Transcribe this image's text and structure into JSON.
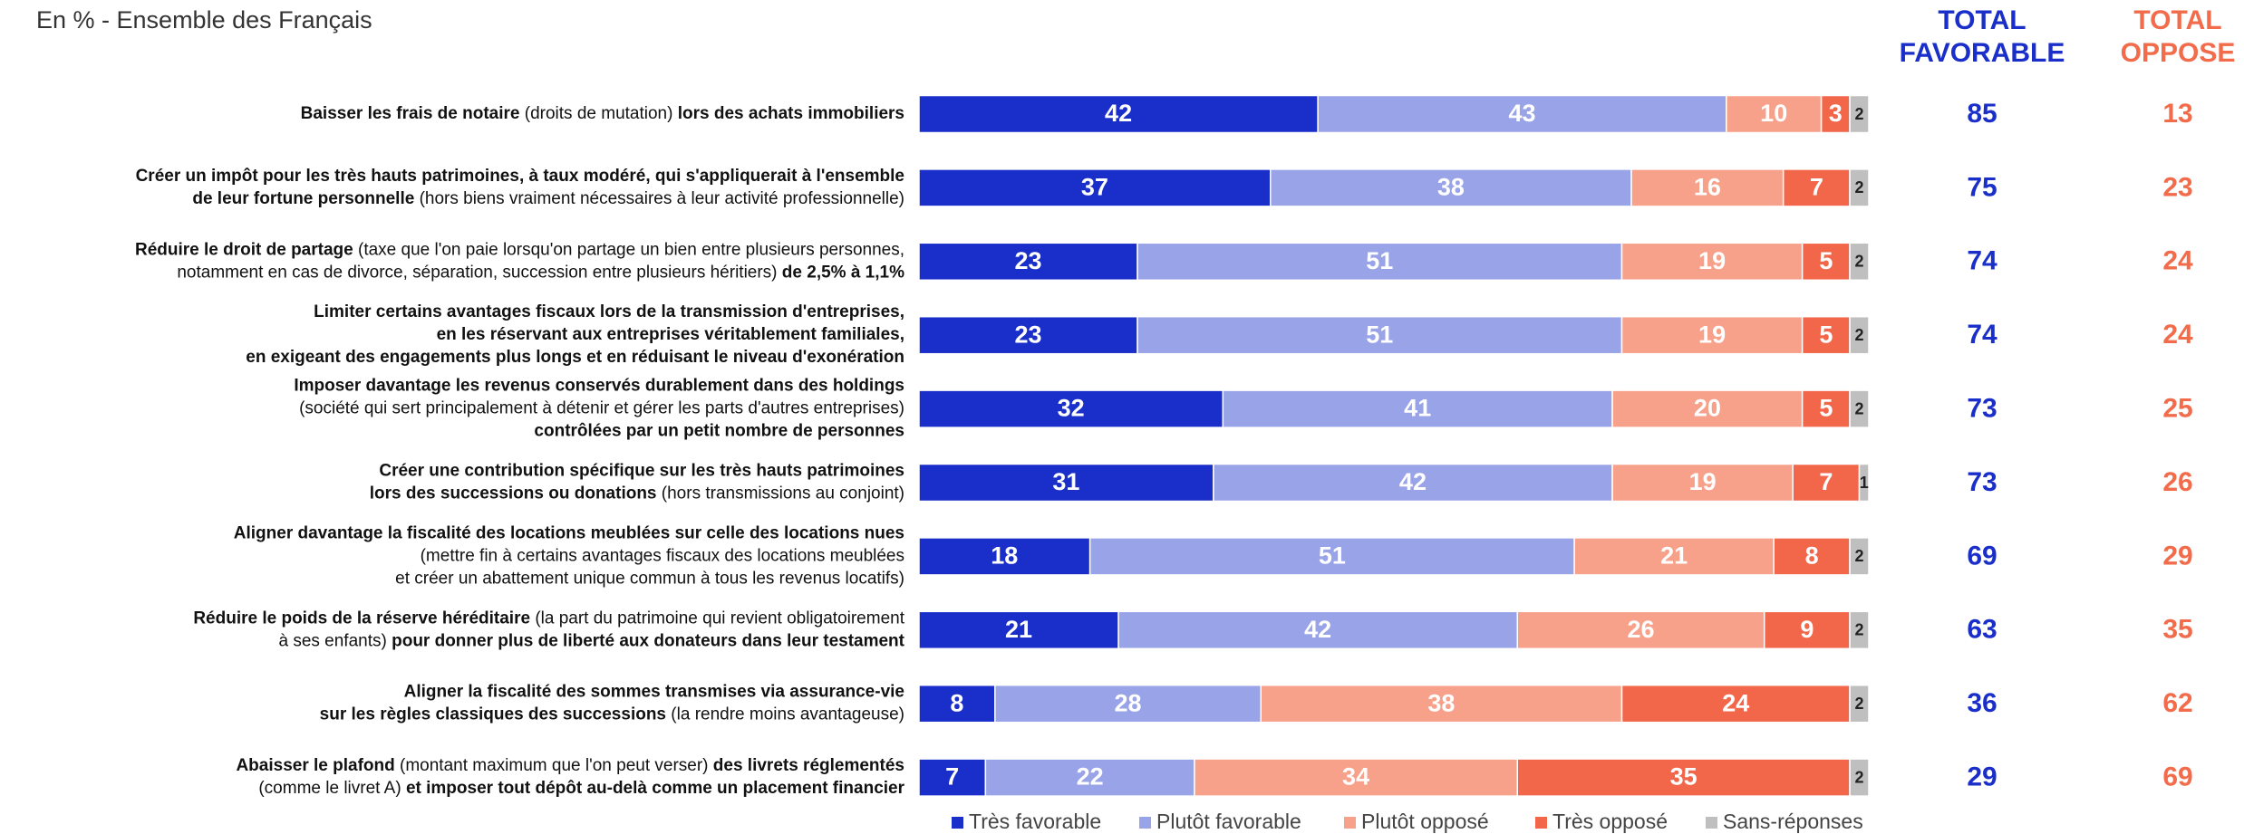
{
  "chart_data": {
    "type": "stacked-bar-h",
    "subtitle": "En % - Ensemble des Français",
    "xlim": [
      0,
      100
    ],
    "categories": [
      [
        [
          {
            "text": "Baisser les frais de notaire",
            "bold": true
          },
          {
            "text": " (droits de mutation) ",
            "bold": false
          },
          {
            "text": "lors des achats immobiliers",
            "bold": true
          }
        ]
      ],
      [
        [
          {
            "text": "Créer un impôt pour les très hauts patrimoines, à taux modéré, qui s'appliquerait à l'ensemble",
            "bold": true
          }
        ],
        [
          {
            "text": "de leur fortune personnelle",
            "bold": true
          },
          {
            "text": " (hors biens vraiment nécessaires à leur activité professionnelle)",
            "bold": false
          }
        ]
      ],
      [
        [
          {
            "text": "Réduire le droit de partage",
            "bold": true
          },
          {
            "text": " (taxe que l'on paie lorsqu'on partage un bien entre plusieurs personnes,",
            "bold": false
          }
        ],
        [
          {
            "text": "notamment en cas de divorce, séparation, succession entre plusieurs héritiers) ",
            "bold": false
          },
          {
            "text": "de 2,5% à 1,1%",
            "bold": true
          }
        ]
      ],
      [
        [
          {
            "text": "Limiter certains avantages fiscaux lors de la transmission d'entreprises,",
            "bold": true
          }
        ],
        [
          {
            "text": "en les réservant aux entreprises véritablement familiales,",
            "bold": true
          }
        ],
        [
          {
            "text": "en exigeant des engagements plus longs et en réduisant le niveau d'exonération",
            "bold": true
          }
        ]
      ],
      [
        [
          {
            "text": "Imposer davantage les revenus conservés durablement dans des holdings",
            "bold": true
          }
        ],
        [
          {
            "text": "(société qui sert principalement à détenir et gérer les parts d'autres entreprises)",
            "bold": false
          }
        ],
        [
          {
            "text": "contrôlées par un petit nombre de personnes",
            "bold": true
          }
        ]
      ],
      [
        [
          {
            "text": "Créer une contribution spécifique sur les très hauts patrimoines",
            "bold": true
          }
        ],
        [
          {
            "text": "lors des successions ou donations",
            "bold": true
          },
          {
            "text": " (hors transmissions au conjoint)",
            "bold": false
          }
        ]
      ],
      [
        [
          {
            "text": "Aligner davantage la fiscalité des locations meublées sur celle des locations nues",
            "bold": true
          }
        ],
        [
          {
            "text": "(mettre fin à certains avantages fiscaux des locations meublées",
            "bold": false
          }
        ],
        [
          {
            "text": "et créer un abattement unique commun à tous les revenus locatifs)",
            "bold": false
          }
        ]
      ],
      [
        [
          {
            "text": "Réduire le poids de la réserve héréditaire",
            "bold": true
          },
          {
            "text": " (la part du patrimoine qui revient obligatoirement",
            "bold": false
          }
        ],
        [
          {
            "text": "à ses enfants) ",
            "bold": false
          },
          {
            "text": "pour donner plus de liberté aux donateurs dans leur testament",
            "bold": true
          }
        ]
      ],
      [
        [
          {
            "text": "Aligner la fiscalité des sommes transmises via assurance-vie",
            "bold": true
          }
        ],
        [
          {
            "text": "sur les règles classiques des successions",
            "bold": true
          },
          {
            "text": " (la rendre moins avantageuse)",
            "bold": false
          }
        ]
      ],
      [
        [
          {
            "text": "Abaisser le plafond",
            "bold": true
          },
          {
            "text": " (montant maximum que l'on peut verser) ",
            "bold": false
          },
          {
            "text": "des livrets réglementés",
            "bold": true
          }
        ],
        [
          {
            "text": "(comme le livret A) ",
            "bold": false
          },
          {
            "text": "et imposer tout dépôt au-delà comme un placement financier",
            "bold": true
          }
        ]
      ]
    ],
    "series": [
      {
        "name": "Très favorable",
        "color": "#1a2fc9",
        "label_color": "#ffffff",
        "values": [
          42,
          37,
          23,
          23,
          32,
          31,
          18,
          21,
          8,
          7
        ]
      },
      {
        "name": "Plutôt favorable",
        "color": "#99a3e8",
        "label_color": "#ffffff",
        "values": [
          43,
          38,
          51,
          51,
          41,
          42,
          51,
          42,
          28,
          22
        ]
      },
      {
        "name": "Plutôt opposé",
        "color": "#f7a08a",
        "label_color": "#ffffff",
        "values": [
          10,
          16,
          19,
          19,
          20,
          19,
          21,
          26,
          38,
          34
        ]
      },
      {
        "name": "Très opposé",
        "color": "#f2664a",
        "label_color": "#ffffff",
        "values": [
          3,
          7,
          5,
          5,
          5,
          7,
          8,
          9,
          24,
          35
        ]
      },
      {
        "name": "Sans-réponses",
        "color": "#bfbfbf",
        "label_color": "#222222",
        "values": [
          2,
          2,
          2,
          2,
          2,
          1,
          2,
          2,
          2,
          2
        ]
      }
    ],
    "totals": [
      {
        "name": [
          "TOTAL",
          "FAVORABLE"
        ],
        "color": "#1a2fc9",
        "values": [
          85,
          75,
          74,
          74,
          73,
          73,
          69,
          63,
          36,
          29
        ]
      },
      {
        "name": [
          "TOTAL",
          "OPPOSE"
        ],
        "color": "#f26b4a",
        "values": [
          13,
          23,
          24,
          24,
          25,
          26,
          29,
          35,
          62,
          69
        ]
      }
    ]
  }
}
